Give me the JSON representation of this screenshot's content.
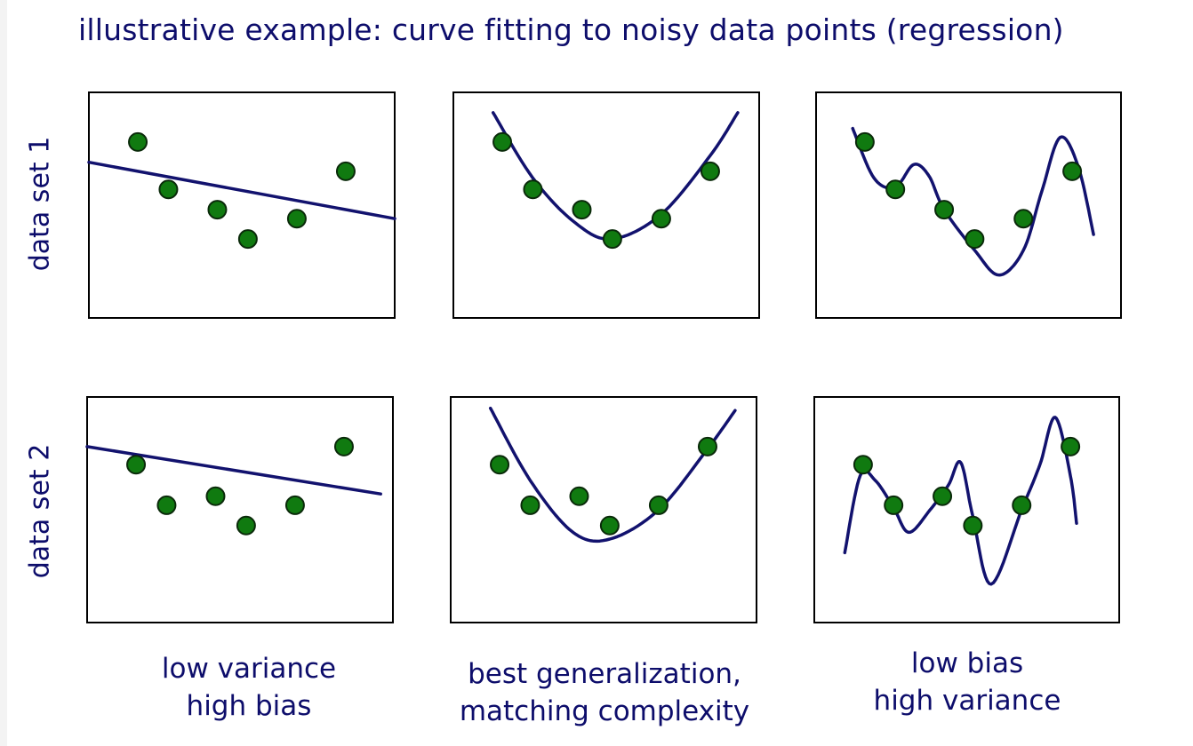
{
  "title": "illustrative example: curve fitting to noisy data points  (regression)",
  "row_labels": [
    "data set 1",
    "data set 2"
  ],
  "column_labels": [
    [
      "low variance",
      "high bias"
    ],
    [
      "best generalization,",
      "matching complexity"
    ],
    [
      "low bias",
      "high variance"
    ]
  ],
  "colors": {
    "text": "#0d0d6b",
    "curve": "#12126e",
    "point_fill": "#107a10",
    "point_stroke": "#0a2a0a",
    "frame": "#000000"
  },
  "datasets": [
    {
      "name": "data set 1",
      "points": [
        [
          0.16,
          0.78
        ],
        [
          0.26,
          0.57
        ],
        [
          0.42,
          0.48
        ],
        [
          0.52,
          0.35
        ],
        [
          0.68,
          0.44
        ],
        [
          0.84,
          0.65
        ]
      ]
    },
    {
      "name": "data set 2",
      "points": [
        [
          0.16,
          0.7
        ],
        [
          0.26,
          0.52
        ],
        [
          0.42,
          0.56
        ],
        [
          0.52,
          0.43
        ],
        [
          0.68,
          0.52
        ],
        [
          0.84,
          0.78
        ]
      ]
    }
  ],
  "fit_models": [
    "linear",
    "quadratic",
    "high-degree polynomial"
  ]
}
